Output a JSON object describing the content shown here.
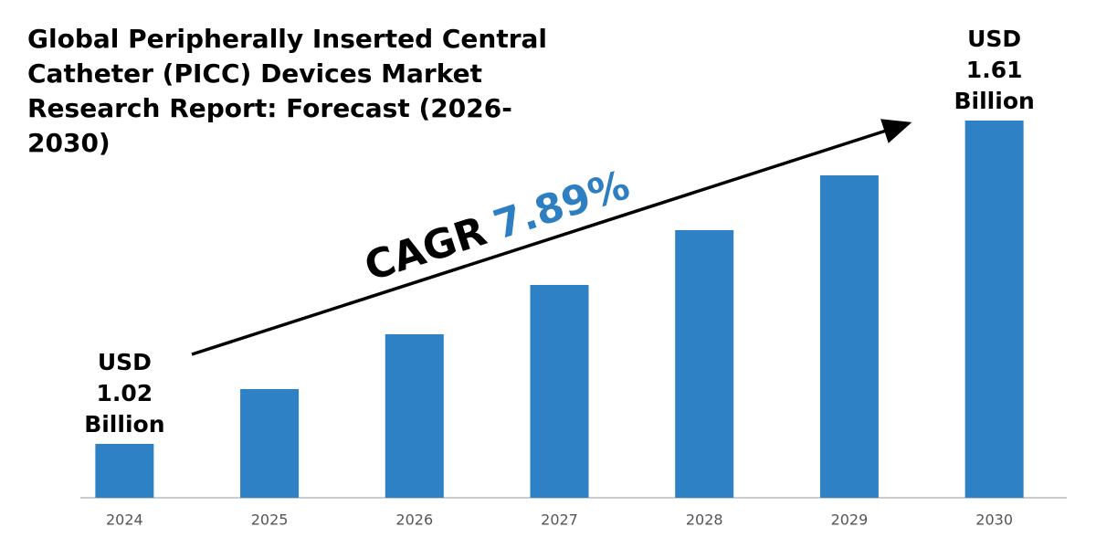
{
  "chart_data": {
    "type": "bar",
    "title": "Global Peripherally Inserted Central Catheter (PICC) Devices Market Research Report: Forecast (2026-2030)",
    "categories": [
      "2024",
      "2025",
      "2026",
      "2027",
      "2028",
      "2029",
      "2030"
    ],
    "values": [
      1.02,
      1.12,
      1.22,
      1.31,
      1.41,
      1.51,
      1.61
    ],
    "value_labels": [
      "USD 1.02 Billion",
      null,
      null,
      null,
      null,
      null,
      "USD 1.61 Billion"
    ],
    "color": "#2e81c4",
    "annotations": [
      "CAGR",
      "7.89%"
    ],
    "annotation_color": "#2e7fc1"
  }
}
